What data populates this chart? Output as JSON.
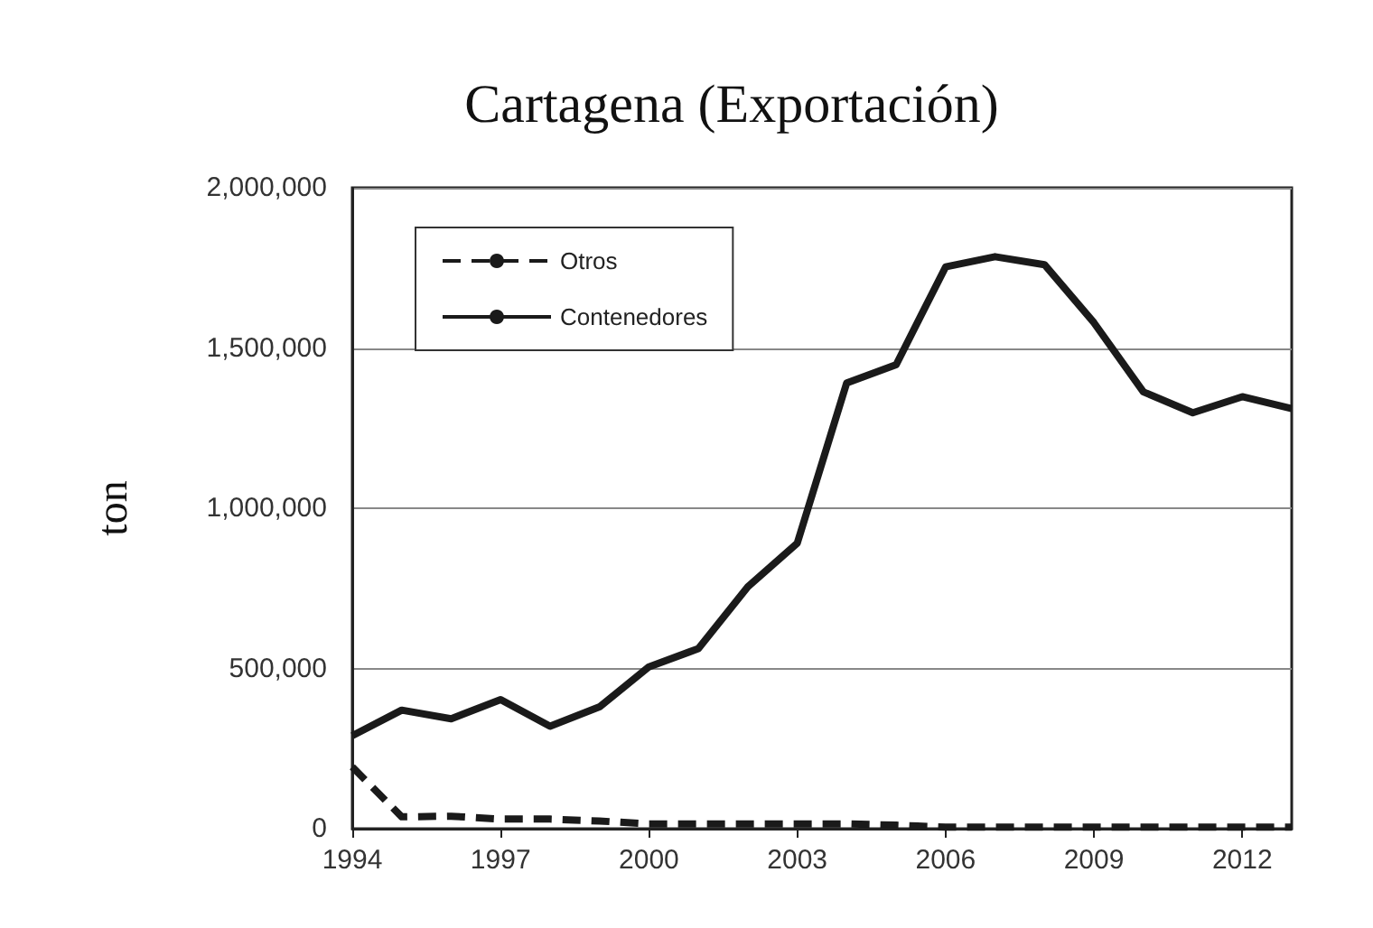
{
  "chart_data": {
    "type": "line",
    "title": "Cartagena (Exportación)",
    "ylabel": "ton",
    "x": [
      1994,
      1995,
      1996,
      1997,
      1998,
      1999,
      2000,
      2001,
      2002,
      2003,
      2004,
      2005,
      2006,
      2007,
      2008,
      2009,
      2010,
      2011,
      2012,
      2013
    ],
    "series": [
      {
        "name": "Otros",
        "color": "#1a1a1a",
        "line_style": "dashed",
        "values": [
          193000,
          37000,
          39000,
          30000,
          30000,
          24000,
          15000,
          15000,
          15000,
          15000,
          15000,
          11000,
          5000,
          5000,
          5000,
          5000,
          5000,
          5000,
          5000,
          5000
        ]
      },
      {
        "name": "Contenedores",
        "color": "#1a1a1a",
        "line_style": "solid",
        "values": [
          290000,
          370000,
          343000,
          403000,
          320000,
          380000,
          505000,
          562000,
          755000,
          891000,
          1391000,
          1448000,
          1753000,
          1785000,
          1760000,
          1579000,
          1363000,
          1298000,
          1348000,
          1311000
        ]
      }
    ],
    "xlim": [
      1994,
      2013
    ],
    "xticks": [
      1994,
      1997,
      2000,
      2003,
      2006,
      2009,
      2012
    ],
    "ylim": [
      0,
      2000000
    ],
    "yticks": [
      0,
      {
        "value": 500000,
        "label": "500,000"
      },
      {
        "value": 1000000,
        "label": "1,000,000"
      },
      {
        "value": 1500000,
        "label": "1,500,000"
      },
      {
        "value": 2000000,
        "label": "2,000,000"
      }
    ],
    "grid": "y",
    "legend": "top left",
    "marker": "none"
  }
}
